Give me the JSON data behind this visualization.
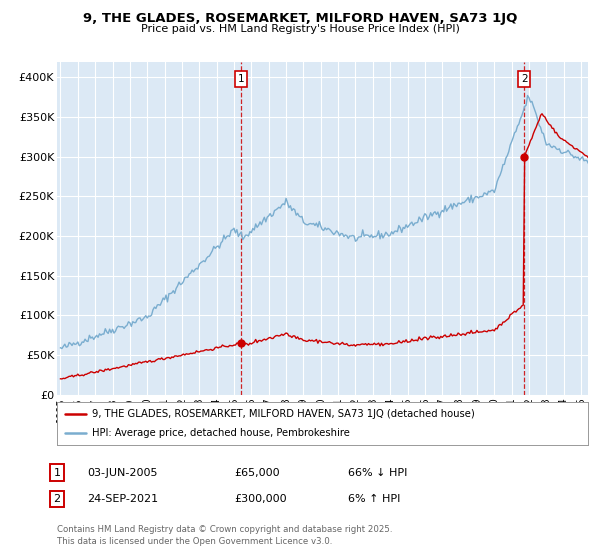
{
  "title_line1": "9, THE GLADES, ROSEMARKET, MILFORD HAVEN, SA73 1JQ",
  "title_line2": "Price paid vs. HM Land Registry's House Price Index (HPI)",
  "legend_red": "9, THE GLADES, ROSEMARKET, MILFORD HAVEN, SA73 1JQ (detached house)",
  "legend_blue": "HPI: Average price, detached house, Pembrokeshire",
  "note1_date": "03-JUN-2005",
  "note1_price": "£65,000",
  "note1_hpi": "66% ↓ HPI",
  "note2_date": "24-SEP-2021",
  "note2_price": "£300,000",
  "note2_hpi": "6% ↑ HPI",
  "footer": "Contains HM Land Registry data © Crown copyright and database right 2025.\nThis data is licensed under the Open Government Licence v3.0.",
  "ylim": [
    0,
    420000
  ],
  "sale1_year": 2005.42,
  "sale1_price": 65000,
  "sale2_year": 2021.73,
  "sale2_price": 300000,
  "fig_bg": "#ffffff",
  "plot_bg": "#dce9f5",
  "grid_color": "#ffffff",
  "red_color": "#cc0000",
  "blue_color": "#7aadcf"
}
